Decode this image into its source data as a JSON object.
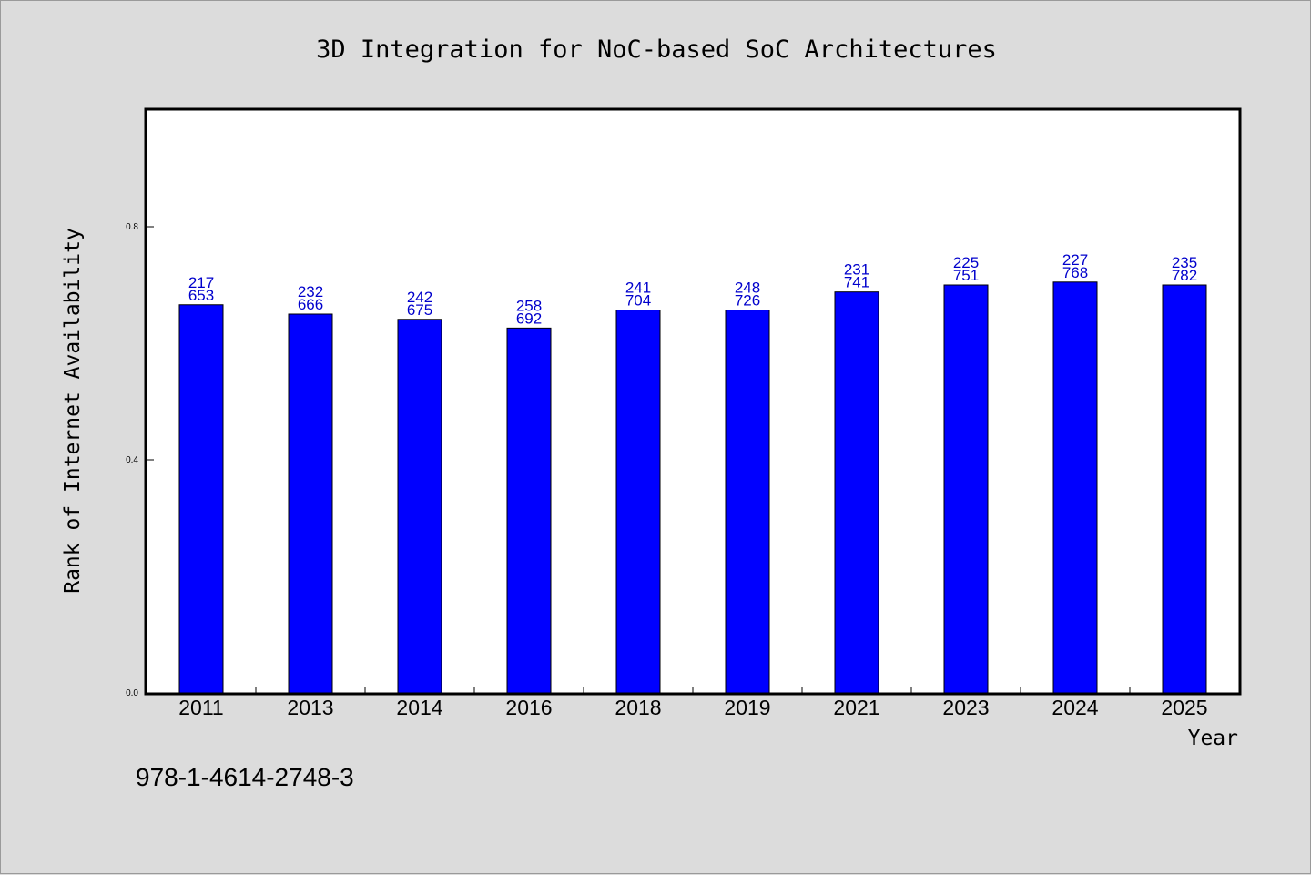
{
  "chart_data": {
    "type": "bar",
    "title": "3D Integration for NoC-based SoC Architectures",
    "xlabel": "Year",
    "ylabel": "Rank of Internet Availability",
    "categories": [
      "2011",
      "2013",
      "2014",
      "2016",
      "2018",
      "2019",
      "2021",
      "2023",
      "2024",
      "2025"
    ],
    "values": [
      0.666,
      0.65,
      0.641,
      0.626,
      0.657,
      0.657,
      0.688,
      0.7,
      0.705,
      0.7
    ],
    "label_top": [
      "217",
      "232",
      "242",
      "258",
      "241",
      "248",
      "231",
      "225",
      "227",
      "235"
    ],
    "label_bottom": [
      "653",
      "666",
      "675",
      "692",
      "704",
      "726",
      "741",
      "751",
      "768",
      "782"
    ],
    "ylim": [
      0,
      1.0
    ],
    "yticks": [
      0.0,
      0.4,
      0.8
    ],
    "ytick_labels": [
      "0.0",
      "0.4",
      "0.8"
    ],
    "grid": false,
    "bar_color": "#0000ff",
    "label_color": "#0000cc",
    "footnote": "978-1-4614-2748-3"
  }
}
